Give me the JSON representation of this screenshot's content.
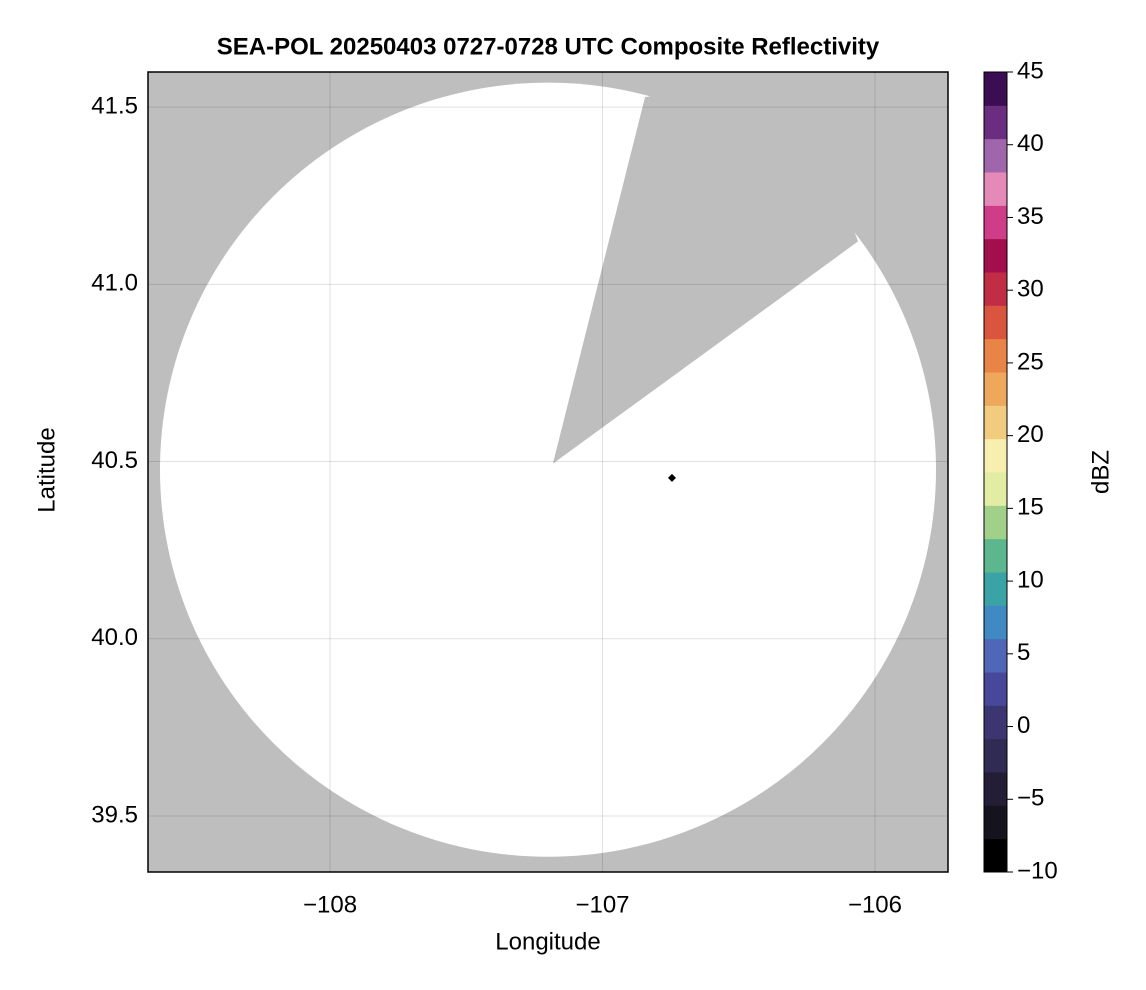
{
  "chart_data": {
    "type": "radar-map",
    "title": "SEA-POL 20250403 0727-0728 UTC Composite Reflectivity",
    "x_label": "Longitude",
    "y_label": "Latitude",
    "xlim": [
      -108.668,
      -105.732
    ],
    "ylim": [
      39.342,
      41.599
    ],
    "xticks": [
      {
        "value": -108,
        "label": "−108"
      },
      {
        "value": -107,
        "label": "−107"
      },
      {
        "value": -106,
        "label": "−106"
      }
    ],
    "yticks": [
      39.5,
      {
        "value": 40,
        "label": "40.0"
      },
      40.5,
      {
        "value": 41,
        "label": "41.0"
      },
      41.5
    ],
    "grid": true,
    "background_color": "#bebebe",
    "coverage": {
      "center": [
        -107.2,
        40.477
      ],
      "radius_lon": 1.424,
      "radius_lat": 1.092,
      "color": "#ffffff"
    },
    "blanked_sector": {
      "lon": [
        -107.182,
        -106.844,
        -106.3,
        -106.062
      ],
      "lat": [
        40.494,
        41.528,
        41.6,
        41.121
      ],
      "color": "#bebebe"
    },
    "points": {
      "x": [
        -106.745
      ],
      "y": [
        40.454
      ],
      "color": "#000000"
    },
    "colorbar": {
      "label": "dBZ",
      "lim": [
        -10,
        45
      ],
      "ticks": [
        {
          "value": -10,
          "label": "−10"
        },
        {
          "value": -5,
          "label": "−5"
        },
        0,
        5,
        10,
        15,
        20,
        25,
        30,
        35,
        40,
        45
      ],
      "colors": [
        "#000000",
        "#15131d",
        "#231e35",
        "#302b52",
        "#3b3671",
        "#47489a",
        "#4f67b6",
        "#4189c2",
        "#3aa3a6",
        "#5db78e",
        "#a2cf8a",
        "#e2eca2",
        "#f7eeb0",
        "#f2cc7e",
        "#eda85c",
        "#e78446",
        "#d9553e",
        "#c12d45",
        "#a30f4c",
        "#cf3d88",
        "#e58ab8",
        "#a066ac",
        "#6a2d80",
        "#3b0d52"
      ]
    }
  }
}
